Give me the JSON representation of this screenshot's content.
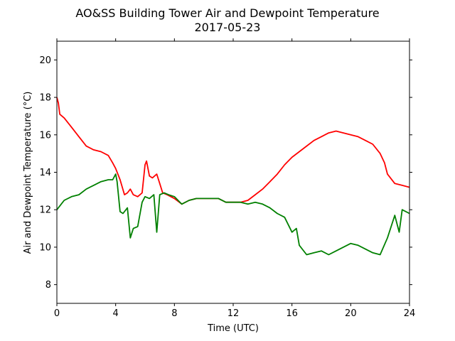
{
  "chart_data": {
    "type": "line",
    "title": "AO&SS Building Tower Air and Dewpoint Temperature",
    "subtitle": "2017-05-23",
    "xlabel": "Time (UTC)",
    "ylabel": "Air and Dewpoint Temperature (°C)",
    "xlim": [
      0,
      24
    ],
    "ylim": [
      7,
      21
    ],
    "xticks": [
      0,
      4,
      8,
      12,
      16,
      20,
      24
    ],
    "xtick_labels": [
      "0",
      "4",
      "8",
      "12",
      "16",
      "20",
      "24"
    ],
    "yticks": [
      8,
      10,
      12,
      14,
      16,
      18,
      20
    ],
    "ytick_labels": [
      "8",
      "10",
      "12",
      "14",
      "16",
      "18",
      "20"
    ],
    "grid": false,
    "legend": "none",
    "series": [
      {
        "color": "#ff0000",
        "x": [
          0,
          0.1,
          0.2,
          0.5,
          1.0,
          1.5,
          2.0,
          2.5,
          3.0,
          3.5,
          3.8,
          4.0,
          4.3,
          4.6,
          4.8,
          5.0,
          5.2,
          5.5,
          5.8,
          6.0,
          6.1,
          6.3,
          6.5,
          6.8,
          7.0,
          7.2,
          7.5,
          8.0,
          8.5,
          9.0,
          9.5,
          10.0,
          10.5,
          11.0,
          11.5,
          12.0,
          12.5,
          13.0,
          13.5,
          14.0,
          14.5,
          15.0,
          15.5,
          16.0,
          16.5,
          17.0,
          17.5,
          18.0,
          18.5,
          19.0,
          19.5,
          20.0,
          20.5,
          21.0,
          21.5,
          22.0,
          22.3,
          22.5,
          23.0,
          23.5,
          24.0
        ],
        "y": [
          18.0,
          17.7,
          17.1,
          16.9,
          16.4,
          15.9,
          15.4,
          15.2,
          15.1,
          14.9,
          14.5,
          14.2,
          13.6,
          12.8,
          12.9,
          13.1,
          12.8,
          12.7,
          12.9,
          14.4,
          14.6,
          13.8,
          13.7,
          13.9,
          13.4,
          12.9,
          12.8,
          12.6,
          12.3,
          12.5,
          12.6,
          12.6,
          12.6,
          12.6,
          12.4,
          12.4,
          12.4,
          12.5,
          12.8,
          13.1,
          13.5,
          13.9,
          14.4,
          14.8,
          15.1,
          15.4,
          15.7,
          15.9,
          16.1,
          16.2,
          16.1,
          16.0,
          15.9,
          15.7,
          15.5,
          15.0,
          14.5,
          13.9,
          13.4,
          13.3,
          13.2
        ]
      },
      {
        "color": "#008000",
        "x": [
          0,
          0.2,
          0.5,
          1.0,
          1.5,
          2.0,
          2.5,
          3.0,
          3.5,
          3.8,
          4.0,
          4.1,
          4.3,
          4.5,
          4.8,
          5.0,
          5.2,
          5.5,
          5.8,
          6.0,
          6.3,
          6.6,
          6.8,
          7.0,
          7.3,
          7.6,
          8.0,
          8.5,
          9.0,
          9.5,
          10.0,
          10.5,
          11.0,
          11.5,
          12.0,
          12.5,
          13.0,
          13.5,
          14.0,
          14.5,
          15.0,
          15.5,
          16.0,
          16.3,
          16.5,
          17.0,
          17.5,
          18.0,
          18.5,
          19.0,
          19.5,
          20.0,
          20.5,
          21.0,
          21.5,
          22.0,
          22.5,
          23.0,
          23.3,
          23.5,
          24.0
        ],
        "y": [
          12.0,
          12.2,
          12.5,
          12.7,
          12.8,
          13.1,
          13.3,
          13.5,
          13.6,
          13.6,
          13.9,
          13.5,
          11.9,
          11.8,
          12.1,
          10.5,
          11.0,
          11.1,
          12.4,
          12.7,
          12.6,
          12.8,
          10.8,
          12.8,
          12.9,
          12.8,
          12.7,
          12.3,
          12.5,
          12.6,
          12.6,
          12.6,
          12.6,
          12.4,
          12.4,
          12.4,
          12.3,
          12.4,
          12.3,
          12.1,
          11.8,
          11.6,
          10.8,
          11.0,
          10.1,
          9.6,
          9.7,
          9.8,
          9.6,
          9.8,
          10.0,
          10.2,
          10.1,
          9.9,
          9.7,
          9.6,
          10.5,
          11.7,
          10.8,
          12.0,
          11.8
        ]
      }
    ]
  }
}
